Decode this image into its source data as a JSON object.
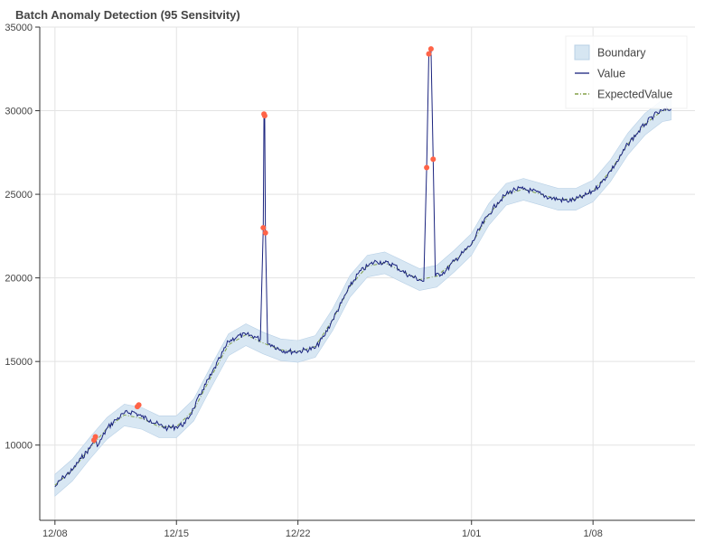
{
  "chart_data": {
    "type": "line",
    "title": "Batch Anomaly Detection (95 Sensitvity)",
    "xlabel": "",
    "ylabel": "",
    "ylim": [
      5500,
      35000
    ],
    "x_range": [
      "2022-12-07T03:00",
      "2023-01-13T21:00"
    ],
    "x_ticks": [
      {
        "date": "2022-12-08",
        "label": "12/08"
      },
      {
        "date": "2022-12-15",
        "label": "12/15"
      },
      {
        "date": "2022-12-22",
        "label": "12/22"
      },
      {
        "date": "2023-01-01",
        "label": "1/01"
      },
      {
        "date": "2023-01-08",
        "label": "1/08"
      }
    ],
    "y_ticks": [
      10000,
      15000,
      20000,
      25000,
      30000,
      35000
    ],
    "y_tick_labels": [
      "10000",
      "15000",
      "20000",
      "25000",
      "30000",
      "35000"
    ],
    "grid": true,
    "legend_position": "top-right",
    "legend": [
      {
        "key": "boundary",
        "label": "Boundary"
      },
      {
        "key": "value",
        "label": "Value"
      },
      {
        "key": "expected",
        "label": "ExpectedValue"
      }
    ],
    "series": [
      {
        "key": "value",
        "name": "Value",
        "color": "#1a237e",
        "points": [
          [
            "2022-12-08T00:00",
            7500
          ],
          [
            "2022-12-08T12:00",
            8100
          ],
          [
            "2022-12-09T00:00",
            8500
          ],
          [
            "2022-12-09T12:00",
            9200
          ],
          [
            "2022-12-10T00:00",
            9800
          ],
          [
            "2022-12-10T06:00",
            10300
          ],
          [
            "2022-12-10T12:00",
            10000
          ],
          [
            "2022-12-11T00:00",
            11000
          ],
          [
            "2022-12-11T12:00",
            11500
          ],
          [
            "2022-12-12T00:00",
            11900
          ],
          [
            "2022-12-12T12:00",
            12000
          ],
          [
            "2022-12-13T00:00",
            11700
          ],
          [
            "2022-12-13T12:00",
            11500
          ],
          [
            "2022-12-14T00:00",
            11200
          ],
          [
            "2022-12-14T12:00",
            11000
          ],
          [
            "2022-12-15T00:00",
            11100
          ],
          [
            "2022-12-15T12:00",
            11300
          ],
          [
            "2022-12-16T00:00",
            12200
          ],
          [
            "2022-12-16T12:00",
            13300
          ],
          [
            "2022-12-17T00:00",
            14200
          ],
          [
            "2022-12-17T12:00",
            15200
          ],
          [
            "2022-12-18T00:00",
            16200
          ],
          [
            "2022-12-18T12:00",
            16500
          ],
          [
            "2022-12-19T00:00",
            16600
          ],
          [
            "2022-12-19T12:00",
            16500
          ],
          [
            "2022-12-19T20:00",
            16300
          ],
          [
            "2022-12-20T00:00",
            23000
          ],
          [
            "2022-12-20T01:00",
            29800
          ],
          [
            "2022-12-20T02:00",
            29700
          ],
          [
            "2022-12-20T03:00",
            22700
          ],
          [
            "2022-12-20T06:00",
            16100
          ],
          [
            "2022-12-20T12:00",
            16000
          ],
          [
            "2022-12-21T00:00",
            15700
          ],
          [
            "2022-12-21T12:00",
            15600
          ],
          [
            "2022-12-22T00:00",
            15600
          ],
          [
            "2022-12-22T12:00",
            15700
          ],
          [
            "2022-12-23T00:00",
            15800
          ],
          [
            "2022-12-23T12:00",
            16500
          ],
          [
            "2022-12-24T00:00",
            17500
          ],
          [
            "2022-12-24T12:00",
            18500
          ],
          [
            "2022-12-25T00:00",
            19500
          ],
          [
            "2022-12-25T12:00",
            20300
          ],
          [
            "2022-12-26T00:00",
            20700
          ],
          [
            "2022-12-26T12:00",
            21000
          ],
          [
            "2022-12-27T00:00",
            20900
          ],
          [
            "2022-12-27T12:00",
            20800
          ],
          [
            "2022-12-28T00:00",
            20400
          ],
          [
            "2022-12-28T12:00",
            20100
          ],
          [
            "2022-12-29T00:00",
            19900
          ],
          [
            "2022-12-29T06:00",
            19800
          ],
          [
            "2022-12-29T10:00",
            26600
          ],
          [
            "2022-12-29T13:00",
            33400
          ],
          [
            "2022-12-29T16:00",
            33700
          ],
          [
            "2022-12-29T19:00",
            27100
          ],
          [
            "2022-12-29T22:00",
            20100
          ],
          [
            "2022-12-30T12:00",
            20400
          ],
          [
            "2022-12-31T00:00",
            21000
          ],
          [
            "2022-12-31T12:00",
            21500
          ],
          [
            "2023-01-01T00:00",
            22000
          ],
          [
            "2023-01-01T12:00",
            23000
          ],
          [
            "2023-01-02T00:00",
            23800
          ],
          [
            "2023-01-02T12:00",
            24500
          ],
          [
            "2023-01-03T00:00",
            25000
          ],
          [
            "2023-01-03T12:00",
            25300
          ],
          [
            "2023-01-04T00:00",
            25300
          ],
          [
            "2023-01-04T12:00",
            25200
          ],
          [
            "2023-01-05T00:00",
            25000
          ],
          [
            "2023-01-05T12:00",
            24800
          ],
          [
            "2023-01-06T00:00",
            24700
          ],
          [
            "2023-01-06T12:00",
            24600
          ],
          [
            "2023-01-07T00:00",
            24700
          ],
          [
            "2023-01-07T12:00",
            24900
          ],
          [
            "2023-01-08T00:00",
            25200
          ],
          [
            "2023-01-08T12:00",
            25700
          ],
          [
            "2023-01-09T00:00",
            26400
          ],
          [
            "2023-01-09T12:00",
            27100
          ],
          [
            "2023-01-10T00:00",
            28000
          ],
          [
            "2023-01-10T12:00",
            28600
          ],
          [
            "2023-01-11T00:00",
            29200
          ],
          [
            "2023-01-11T12:00",
            29700
          ],
          [
            "2023-01-12T00:00",
            30000
          ],
          [
            "2023-01-12T12:00",
            30100
          ]
        ]
      },
      {
        "key": "expected",
        "name": "ExpectedValue",
        "color": "#6b8e23",
        "points": [
          [
            "2022-12-08T00:00",
            7600
          ],
          [
            "2022-12-09T00:00",
            8500
          ],
          [
            "2022-12-10T00:00",
            9800
          ],
          [
            "2022-12-11T00:00",
            11000
          ],
          [
            "2022-12-12T00:00",
            11800
          ],
          [
            "2022-12-13T00:00",
            11600
          ],
          [
            "2022-12-14T00:00",
            11100
          ],
          [
            "2022-12-15T00:00",
            11100
          ],
          [
            "2022-12-16T00:00",
            12100
          ],
          [
            "2022-12-17T00:00",
            14100
          ],
          [
            "2022-12-18T00:00",
            16000
          ],
          [
            "2022-12-19T00:00",
            16600
          ],
          [
            "2022-12-20T00:00",
            16100
          ],
          [
            "2022-12-21T00:00",
            15700
          ],
          [
            "2022-12-22T00:00",
            15600
          ],
          [
            "2022-12-23T00:00",
            15900
          ],
          [
            "2022-12-24T00:00",
            17500
          ],
          [
            "2022-12-25T00:00",
            19500
          ],
          [
            "2022-12-26T00:00",
            20700
          ],
          [
            "2022-12-27T00:00",
            20900
          ],
          [
            "2022-12-28T00:00",
            20400
          ],
          [
            "2022-12-29T00:00",
            19900
          ],
          [
            "2022-12-30T00:00",
            20100
          ],
          [
            "2022-12-31T00:00",
            21000
          ],
          [
            "2023-01-01T00:00",
            22000
          ],
          [
            "2023-01-02T00:00",
            23800
          ],
          [
            "2023-01-03T00:00",
            25000
          ],
          [
            "2023-01-04T00:00",
            25300
          ],
          [
            "2023-01-05T00:00",
            25000
          ],
          [
            "2023-01-06T00:00",
            24700
          ],
          [
            "2023-01-07T00:00",
            24700
          ],
          [
            "2023-01-08T00:00",
            25200
          ],
          [
            "2023-01-09T00:00",
            26400
          ],
          [
            "2023-01-10T00:00",
            28000
          ],
          [
            "2023-01-11T00:00",
            29200
          ],
          [
            "2023-01-12T00:00",
            30000
          ],
          [
            "2023-01-12T12:00",
            30100
          ]
        ]
      },
      {
        "key": "boundary",
        "name": "Boundary",
        "color": "#d6e6f2",
        "band_halfwidth": 650
      }
    ],
    "anomalies": {
      "color": "#ff6347",
      "points": [
        [
          "2022-12-10T06:00",
          10300
        ],
        [
          "2022-12-10T08:00",
          10500
        ],
        [
          "2022-12-12T18:00",
          12300
        ],
        [
          "2022-12-12T20:00",
          12400
        ],
        [
          "2022-12-20T00:00",
          23000
        ],
        [
          "2022-12-20T01:00",
          29800
        ],
        [
          "2022-12-20T02:00",
          29700
        ],
        [
          "2022-12-20T03:00",
          22700
        ],
        [
          "2022-12-29T10:00",
          26600
        ],
        [
          "2022-12-29T13:00",
          33400
        ],
        [
          "2022-12-29T16:00",
          33700
        ],
        [
          "2022-12-29T19:00",
          27100
        ]
      ]
    }
  }
}
